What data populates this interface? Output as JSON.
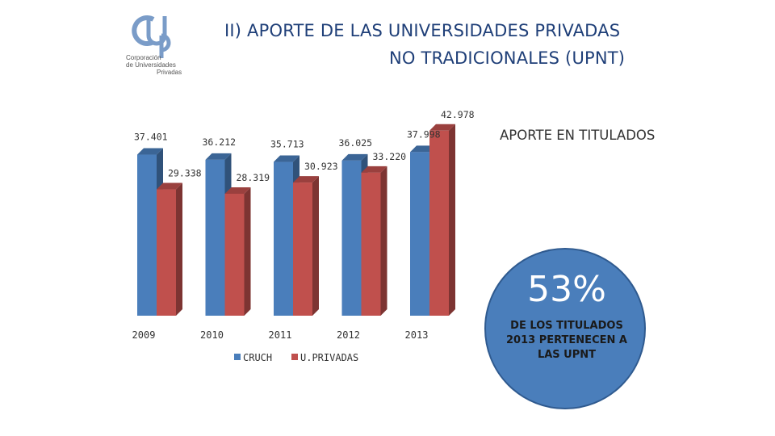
{
  "slide": {
    "title_line1": "II) APORTE DE LAS UNIVERSIDADES PRIVADAS",
    "title_line2": "NO TRADICIONALES (UPNT)",
    "side_title": "APORTE EN TITULADOS"
  },
  "logo": {
    "text_line1": "Corporación",
    "text_line2": "de Universidades",
    "text_line3": "Privadas",
    "color": "#7a9cc8"
  },
  "highlight": {
    "percent": "53%",
    "text": "DE LOS TITULADOS 2013 PERTENECEN A LAS UPNT",
    "color": "#4a7ebb"
  },
  "chart_data": {
    "type": "bar",
    "style": "3d-clustered-column",
    "categories": [
      "2009",
      "2010",
      "2011",
      "2012",
      "2013"
    ],
    "series": [
      {
        "name": "CRUCH",
        "color": "#4a7ebb",
        "values": [
          37401,
          36212,
          35713,
          36025,
          37998
        ],
        "labels": [
          "37.401",
          "36.212",
          "35.713",
          "36.025",
          "37.998"
        ]
      },
      {
        "name": "U.PRIVADAS",
        "color": "#c0504d",
        "values": [
          29338,
          28319,
          30923,
          33220,
          42978
        ],
        "labels": [
          "29.338",
          "28.319",
          "30.923",
          "33.220",
          "42.978"
        ]
      }
    ],
    "ylim": [
      0,
      45000
    ],
    "grid": false,
    "legend": "bottom"
  }
}
